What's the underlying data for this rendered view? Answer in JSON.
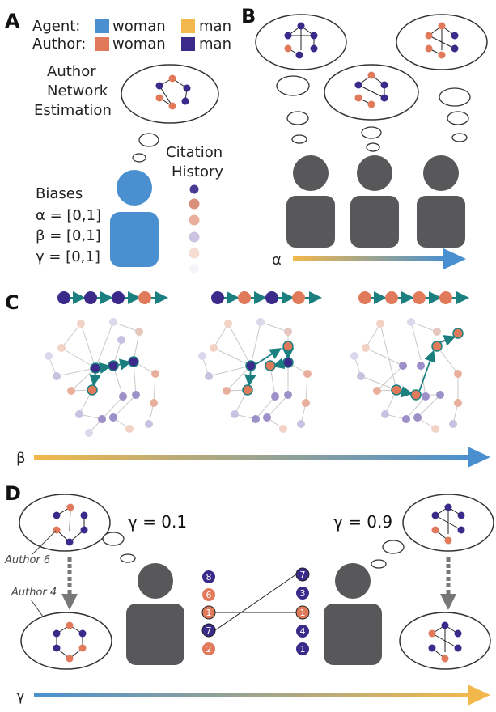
{
  "panels": {
    "a": "A",
    "b": "B",
    "c": "C",
    "d": "D"
  },
  "legend": {
    "agent_label": "Agent:",
    "author_label": "Author:",
    "woman": "woman",
    "man": "man"
  },
  "panel_a": {
    "estimation_line1": "Author",
    "estimation_line2": "Network",
    "estimation_line3": "Estimation",
    "citation_line1": "Citation",
    "citation_line2": "History",
    "biases_title": "Biases",
    "alpha": "α = [0,1]",
    "beta": "β = [0,1]",
    "gamma": "γ = [0,1]"
  },
  "panel_b": {
    "axis_label": "α"
  },
  "panel_c": {
    "axis_label": "β"
  },
  "panel_d": {
    "gamma_low": "γ = 0.1",
    "gamma_high": "γ = 0.9",
    "author6": "Author 6",
    "author4": "Author 4",
    "axis_label": "γ",
    "left_list": [
      "8",
      "6",
      "1",
      "7",
      "2"
    ],
    "right_list": [
      "7",
      "3",
      "1",
      "4",
      "1"
    ]
  },
  "colors": {
    "agent_woman": "#4a90d0",
    "agent_man": "#f2b84b",
    "author_woman": "#e07a5a",
    "author_man": "#3b2a8a",
    "agent_gray": "#58585a",
    "teal": "#1b7f7f"
  }
}
